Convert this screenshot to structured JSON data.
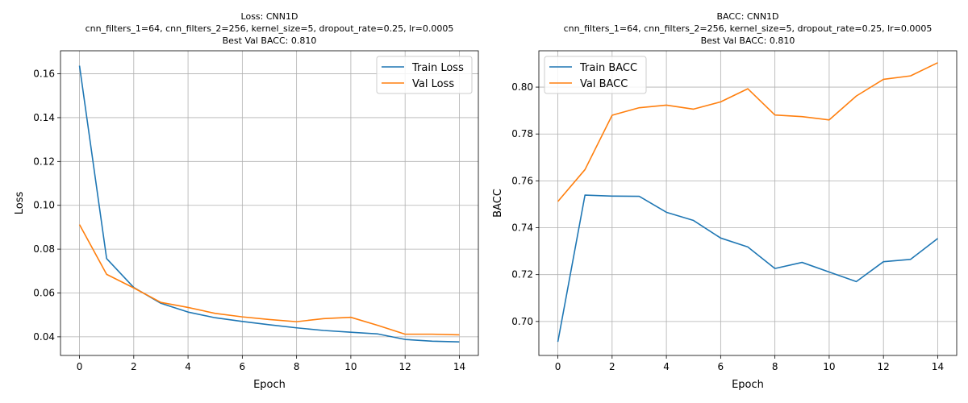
{
  "chart_data": [
    {
      "type": "line",
      "title_lines": [
        "Loss: CNN1D",
        "cnn_filters_1=64, cnn_filters_2=256, kernel_size=5, dropout_rate=0.25, lr=0.0005",
        "Best Val BACC: 0.810"
      ],
      "xlabel": "Epoch",
      "ylabel": "Loss",
      "xlim": [
        -0.7,
        14.7
      ],
      "ylim": [
        0.0315,
        0.1705
      ],
      "xticks": [
        0,
        2,
        4,
        6,
        8,
        10,
        12,
        14
      ],
      "xtick_labels": [
        "0",
        "2",
        "4",
        "6",
        "8",
        "10",
        "12",
        "14"
      ],
      "yticks": [
        0.04,
        0.06,
        0.08,
        0.1,
        0.12,
        0.14,
        0.16
      ],
      "ytick_labels": [
        "0.04",
        "0.06",
        "0.08",
        "0.10",
        "0.12",
        "0.14",
        "0.16"
      ],
      "grid": true,
      "legend_position": "top-right",
      "x": [
        0,
        1,
        2,
        3,
        4,
        5,
        6,
        7,
        8,
        9,
        10,
        11,
        12,
        13,
        14
      ],
      "series": [
        {
          "name": "Train Loss",
          "color": "#1f77b4",
          "values": [
            0.1637,
            0.0757,
            0.0625,
            0.0553,
            0.0513,
            0.0487,
            0.047,
            0.0455,
            0.0441,
            0.0429,
            0.0421,
            0.0413,
            0.0388,
            0.038,
            0.0377
          ]
        },
        {
          "name": "Val Loss",
          "color": "#ff7f0e",
          "values": [
            0.0912,
            0.0685,
            0.0623,
            0.0557,
            0.0534,
            0.0507,
            0.0491,
            0.0479,
            0.0469,
            0.0483,
            0.0489,
            0.0452,
            0.0412,
            0.0412,
            0.0409
          ]
        }
      ]
    },
    {
      "type": "line",
      "title_lines": [
        "BACC: CNN1D",
        "cnn_filters_1=64, cnn_filters_2=256, kernel_size=5, dropout_rate=0.25, lr=0.0005",
        "Best Val BACC: 0.810"
      ],
      "xlabel": "Epoch",
      "ylabel": "BACC",
      "xlim": [
        -0.7,
        14.7
      ],
      "ylim": [
        0.6855,
        0.8155
      ],
      "xticks": [
        0,
        2,
        4,
        6,
        8,
        10,
        12,
        14
      ],
      "xtick_labels": [
        "0",
        "2",
        "4",
        "6",
        "8",
        "10",
        "12",
        "14"
      ],
      "yticks": [
        0.7,
        0.72,
        0.74,
        0.76,
        0.78,
        0.8
      ],
      "ytick_labels": [
        "0.70",
        "0.72",
        "0.74",
        "0.76",
        "0.78",
        "0.80"
      ],
      "grid": true,
      "legend_position": "top-left",
      "x": [
        0,
        1,
        2,
        3,
        4,
        5,
        6,
        7,
        8,
        9,
        10,
        11,
        12,
        13,
        14
      ],
      "series": [
        {
          "name": "Train BACC",
          "color": "#1f77b4",
          "values": [
            0.6913,
            0.7539,
            0.7535,
            0.7534,
            0.7466,
            0.7431,
            0.7356,
            0.7318,
            0.7226,
            0.7252,
            0.7211,
            0.717,
            0.7255,
            0.7265,
            0.7354
          ]
        },
        {
          "name": "Val BACC",
          "color": "#ff7f0e",
          "values": [
            0.7512,
            0.7648,
            0.788,
            0.7912,
            0.7923,
            0.7906,
            0.7937,
            0.7993,
            0.7881,
            0.7874,
            0.786,
            0.7962,
            0.8033,
            0.8048,
            0.8104
          ]
        }
      ]
    }
  ]
}
